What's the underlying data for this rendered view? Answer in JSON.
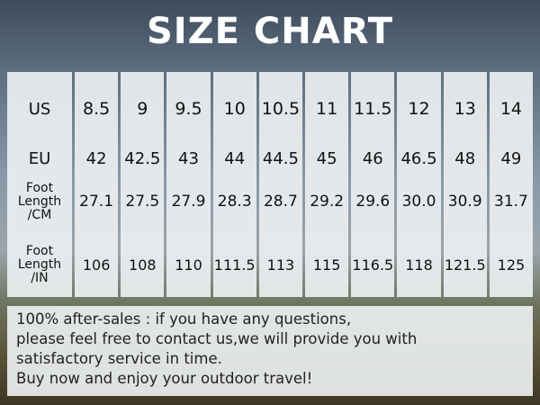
{
  "title": "SIZE CHART",
  "rows": {
    "us_label": "US",
    "eu_label": "EU",
    "cm_label": [
      "Foot",
      "Length",
      "/CM"
    ],
    "in_label": [
      "Foot",
      "Length",
      "/IN"
    ]
  },
  "columns": [
    {
      "us": "8.5",
      "eu": "42",
      "cm": "27.1",
      "in": "106"
    },
    {
      "us": "9",
      "eu": "42.5",
      "cm": "27.5",
      "in": "108"
    },
    {
      "us": "9.5",
      "eu": "43",
      "cm": "27.9",
      "in": "110"
    },
    {
      "us": "10",
      "eu": "44",
      "cm": "28.3",
      "in": "111.5"
    },
    {
      "us": "10.5",
      "eu": "44.5",
      "cm": "28.7",
      "in": "113"
    },
    {
      "us": "11",
      "eu": "45",
      "cm": "29.2",
      "in": "115"
    },
    {
      "us": "11.5",
      "eu": "46",
      "cm": "29.6",
      "in": "116.5"
    },
    {
      "us": "12",
      "eu": "46.5",
      "cm": "30.0",
      "in": "118"
    },
    {
      "us": "13",
      "eu": "48",
      "cm": "30.9",
      "in": "121.5"
    },
    {
      "us": "14",
      "eu": "49",
      "cm": "31.7",
      "in": "125"
    }
  ],
  "note": [
    "100% after-sales : if you have any questions,",
    "please feel free to contact us,we will provide you with",
    "satisfactory service in time.",
    "Buy now and enjoy your outdoor travel!"
  ]
}
